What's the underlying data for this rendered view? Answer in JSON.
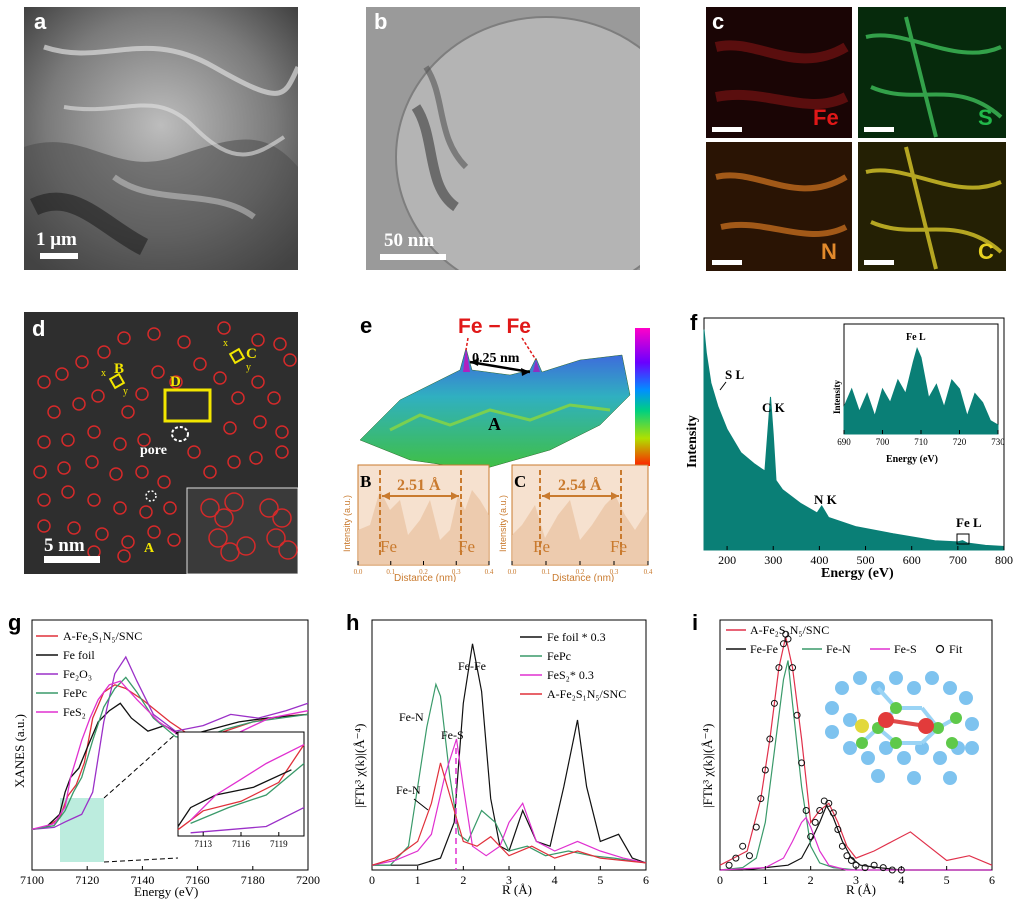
{
  "colors": {
    "teal": "#0a7f76",
    "red_circle": "#d42a2a",
    "yellow": "#f2e600",
    "orange": "#c97a2e",
    "orange_fill": "#f6e1cf",
    "fe_red": "#e01818",
    "s_green": "#22b84a",
    "n_orange": "#e28a2c",
    "c_yellow": "#e6d020"
  },
  "panels": {
    "a": {
      "label": "a",
      "scale": "1 μm"
    },
    "b": {
      "label": "b",
      "scale": "50 nm"
    },
    "c": {
      "label": "c",
      "elements": [
        "Fe",
        "S",
        "N",
        "C"
      ]
    },
    "d": {
      "label": "d",
      "scale": "5 nm",
      "markers": {
        "B": "B",
        "C": "C",
        "D": "D",
        "A": "A",
        "pore": "pore",
        "x": "x",
        "y": "y"
      }
    },
    "e": {
      "label": "e",
      "fefe": "Fe − Fe",
      "distance": "0.25 nm",
      "site": "A",
      "profiles": [
        {
          "label": "B",
          "value": "2.51 Å",
          "fe_left": "Fe",
          "fe_right": "Fe"
        },
        {
          "label": "C",
          "value": "2.54 Å",
          "fe_left": "Fe",
          "fe_right": "Fe"
        }
      ],
      "ylabel": "Intensity (a.u.)",
      "xlabel": "Distance (nm)",
      "xticks": [
        "0.0",
        "0.1",
        "0.2",
        "0.3",
        "0.4"
      ]
    },
    "f": {
      "label": "f",
      "xlabel": "Energy (eV)",
      "ylabel": "Intensity",
      "xticks": [
        "200",
        "300",
        "400",
        "500",
        "600",
        "700",
        "800"
      ],
      "peaks": {
        "s": "S L",
        "c": "C K",
        "n": "N K",
        "fe": "Fe L"
      },
      "inset": {
        "title": "Fe L",
        "xlabel": "Energy (eV)",
        "ylabel": "Intensity",
        "xticks": [
          "690",
          "700",
          "710",
          "720",
          "730"
        ]
      }
    },
    "g": {
      "label": "g",
      "xlabel": "Energy (eV)",
      "ylabel": "XANES (a.u.)",
      "xticks": [
        "7100",
        "7120",
        "7140",
        "7160",
        "7180",
        "7200"
      ],
      "inset_xticks": [
        "7113",
        "7116",
        "7119"
      ],
      "legend": [
        "A-Fe2S1N5/SNC",
        "Fe foil",
        "Fe2O3",
        "FePc",
        "FeS2"
      ]
    },
    "h": {
      "label": "h",
      "xlabel": "R (Å)",
      "ylabel": "|FTk³ χ(k)|(Å⁻⁴)",
      "xticks": [
        "0",
        "1",
        "2",
        "3",
        "4",
        "5",
        "6"
      ],
      "legend": [
        "Fe foil * 0.3",
        "FePc",
        "FeS2* 0.3",
        "A-Fe2S1N5/SNC"
      ],
      "annotations": [
        "Fe-Fe",
        "Fe-N",
        "Fe-S",
        "Fe-N"
      ]
    },
    "i": {
      "label": "i",
      "xlabel": "R (Å)",
      "ylabel": "|FTk³ χ(k)|(Å⁻⁴)",
      "xticks": [
        "0",
        "1",
        "2",
        "3",
        "4",
        "5",
        "6"
      ],
      "legend": [
        "A-Fe2S1N5/SNC",
        "Fe-Fe",
        "Fe-N",
        "Fe-S",
        "Fit"
      ]
    }
  },
  "chart_data": [
    {
      "type": "line",
      "id": "f-eels",
      "xlabel": "Energy (eV)",
      "ylabel": "Intensity",
      "xlim": [
        150,
        800
      ],
      "series": [
        {
          "x": [
            150,
            155,
            165,
            180,
            200,
            230,
            260,
            282,
            288,
            294,
            300,
            306,
            320,
            360,
            395,
            405,
            420,
            480,
            560,
            650,
            700,
            710,
            720,
            760,
            800
          ],
          "y": [
            0.95,
            0.85,
            0.72,
            0.62,
            0.52,
            0.42,
            0.37,
            0.34,
            0.5,
            0.66,
            0.5,
            0.3,
            0.26,
            0.2,
            0.16,
            0.19,
            0.14,
            0.1,
            0.07,
            0.04,
            0.035,
            0.04,
            0.03,
            0.02,
            0.015
          ]
        }
      ]
    },
    {
      "type": "line",
      "id": "f-inset",
      "title": "Fe L",
      "xlabel": "Energy (eV)",
      "ylabel": "Intensity",
      "xlim": [
        690,
        730
      ],
      "series": [
        {
          "x": [
            690,
            692,
            694,
            696,
            698,
            700,
            702,
            704,
            706,
            708,
            709,
            710,
            712,
            714,
            716,
            718,
            720,
            722,
            724,
            726,
            728,
            730
          ],
          "y": [
            0.3,
            0.5,
            0.25,
            0.45,
            0.2,
            0.5,
            0.35,
            0.6,
            0.45,
            0.8,
            0.95,
            0.85,
            0.4,
            0.55,
            0.3,
            0.6,
            0.5,
            0.2,
            0.45,
            0.35,
            0.15,
            0.1
          ]
        }
      ]
    },
    {
      "type": "line",
      "id": "g-xanes",
      "xlabel": "Energy (eV)",
      "ylabel": "XANES (a.u.)",
      "xlim": [
        7100,
        7200
      ],
      "series": [
        {
          "name": "A-Fe2S1N5/SNC",
          "color": "#e0303a",
          "x": [
            7100,
            7105,
            7110,
            7113,
            7116,
            7119,
            7122,
            7126,
            7130,
            7134,
            7140,
            7150,
            7160,
            7170,
            7180,
            7190,
            7200
          ],
          "y": [
            0.02,
            0.03,
            0.08,
            0.2,
            0.26,
            0.38,
            0.62,
            0.76,
            0.8,
            0.78,
            0.72,
            0.6,
            0.5,
            0.55,
            0.6,
            0.63,
            0.64
          ]
        },
        {
          "name": "Fe foil",
          "color": "#111111",
          "x": [
            7100,
            7105,
            7110,
            7112,
            7114,
            7117,
            7120,
            7124,
            7128,
            7132,
            7136,
            7142,
            7148,
            7155,
            7165,
            7175,
            7185,
            7200
          ],
          "y": [
            0.02,
            0.03,
            0.1,
            0.22,
            0.3,
            0.35,
            0.46,
            0.6,
            0.66,
            0.7,
            0.62,
            0.55,
            0.58,
            0.52,
            0.56,
            0.6,
            0.62,
            0.64
          ]
        },
        {
          "name": "Fe2O3",
          "color": "#9b30c8",
          "x": [
            7100,
            7108,
            7112,
            7115,
            7118,
            7122,
            7126,
            7130,
            7134,
            7138,
            7144,
            7152,
            7162,
            7172,
            7182,
            7192,
            7200
          ],
          "y": [
            0.02,
            0.03,
            0.06,
            0.08,
            0.1,
            0.22,
            0.6,
            0.86,
            0.95,
            0.82,
            0.64,
            0.55,
            0.58,
            0.64,
            0.62,
            0.66,
            0.7
          ]
        },
        {
          "name": "FePc",
          "color": "#3a9a6a",
          "x": [
            7100,
            7108,
            7112,
            7115,
            7118,
            7122,
            7126,
            7130,
            7134,
            7138,
            7144,
            7152,
            7160,
            7170,
            7180,
            7190,
            7200
          ],
          "y": [
            0.02,
            0.04,
            0.12,
            0.22,
            0.3,
            0.5,
            0.68,
            0.78,
            0.84,
            0.76,
            0.62,
            0.52,
            0.5,
            0.56,
            0.6,
            0.62,
            0.64
          ]
        },
        {
          "name": "FeS2",
          "color": "#e030d0",
          "x": [
            7100,
            7108,
            7112,
            7114,
            7116,
            7118,
            7121,
            7124,
            7128,
            7132,
            7138,
            7146,
            7156,
            7166,
            7176,
            7186,
            7200
          ],
          "y": [
            0.02,
            0.05,
            0.14,
            0.3,
            0.4,
            0.5,
            0.62,
            0.72,
            0.8,
            0.82,
            0.72,
            0.6,
            0.5,
            0.48,
            0.55,
            0.62,
            0.66
          ]
        }
      ]
    },
    {
      "type": "line",
      "id": "h-ft",
      "xlabel": "R (Å)",
      "ylabel": "|FTk³ χ(k)|(Å⁻⁴)",
      "xlim": [
        0,
        6
      ],
      "series": [
        {
          "name": "Fe foil * 0.3",
          "color": "#111111",
          "x": [
            0,
            0.5,
            1.0,
            1.5,
            1.8,
            2.0,
            2.2,
            2.4,
            2.6,
            2.8,
            3.0,
            3.3,
            3.6,
            3.9,
            4.2,
            4.5,
            4.7,
            5.0,
            5.4,
            5.7,
            6.0
          ],
          "y": [
            0.02,
            0.02,
            0.02,
            0.05,
            0.2,
            0.7,
            0.95,
            0.75,
            0.3,
            0.1,
            0.08,
            0.25,
            0.12,
            0.1,
            0.35,
            0.63,
            0.35,
            0.12,
            0.15,
            0.05,
            0.03
          ]
        },
        {
          "name": "FePc",
          "color": "#3a9a6a",
          "x": [
            0,
            0.4,
            0.8,
            1.0,
            1.2,
            1.4,
            1.5,
            1.7,
            1.9,
            2.1,
            2.4,
            2.7,
            3.0,
            3.4,
            3.8,
            4.3,
            4.8,
            5.3,
            6.0
          ],
          "y": [
            0.02,
            0.02,
            0.1,
            0.35,
            0.6,
            0.78,
            0.73,
            0.4,
            0.15,
            0.12,
            0.25,
            0.2,
            0.08,
            0.1,
            0.06,
            0.08,
            0.06,
            0.05,
            0.03
          ]
        },
        {
          "name": "FeS2* 0.3",
          "color": "#e030d0",
          "x": [
            0,
            0.5,
            1.0,
            1.3,
            1.6,
            1.85,
            2.0,
            2.2,
            2.5,
            2.8,
            3.0,
            3.3,
            3.6,
            4.0,
            4.5,
            5.0,
            5.5,
            6.0
          ],
          "y": [
            0.02,
            0.04,
            0.08,
            0.15,
            0.4,
            0.55,
            0.35,
            0.1,
            0.06,
            0.1,
            0.2,
            0.28,
            0.12,
            0.08,
            0.12,
            0.08,
            0.05,
            0.03
          ]
        },
        {
          "name": "A-Fe2S1N5/SNC",
          "color": "#e0303a",
          "x": [
            0,
            0.5,
            1.0,
            1.3,
            1.5,
            1.8,
            2.0,
            2.3,
            2.6,
            3.0,
            3.5,
            4.0,
            4.5,
            5.0,
            5.5,
            6.0
          ],
          "y": [
            0.02,
            0.05,
            0.12,
            0.28,
            0.45,
            0.25,
            0.12,
            0.1,
            0.14,
            0.06,
            0.1,
            0.05,
            0.08,
            0.05,
            0.04,
            0.03
          ]
        }
      ]
    },
    {
      "type": "line",
      "id": "i-fit",
      "xlabel": "R (Å)",
      "ylabel": "|FTk³ χ(k)|(Å⁻⁴)",
      "xlim": [
        0,
        6
      ],
      "series": [
        {
          "name": "A-Fe2S1N5/SNC",
          "color": "#e0304a",
          "x": [
            0,
            0.3,
            0.6,
            0.9,
            1.1,
            1.3,
            1.45,
            1.6,
            1.8,
            2.0,
            2.2,
            2.4,
            2.6,
            2.8,
            3.0,
            3.4,
            3.8,
            4.2,
            4.6,
            5.0,
            5.5,
            6.0
          ],
          "y": [
            0.02,
            0.05,
            0.08,
            0.3,
            0.55,
            0.85,
            0.98,
            0.85,
            0.55,
            0.2,
            0.25,
            0.28,
            0.2,
            0.1,
            0.05,
            0.08,
            0.12,
            0.16,
            0.1,
            0.04,
            0.06,
            0.02
          ]
        },
        {
          "name": "Fe-Fe",
          "color": "#111111",
          "x": [
            0,
            0.5,
            1.0,
            1.5,
            1.8,
            2.0,
            2.2,
            2.35,
            2.5,
            2.7,
            2.9,
            3.1,
            3.5,
            4.0,
            4.5,
            5.0,
            6.0
          ],
          "y": [
            0.0,
            0.0,
            0.01,
            0.02,
            0.05,
            0.12,
            0.2,
            0.27,
            0.22,
            0.12,
            0.05,
            0.02,
            0.01,
            0.0,
            0.0,
            0.0,
            0.0
          ]
        },
        {
          "name": "Fe-N",
          "color": "#3a9a6a",
          "x": [
            0,
            0.5,
            0.8,
            1.0,
            1.2,
            1.4,
            1.5,
            1.6,
            1.8,
            2.0,
            2.2,
            2.5,
            3.0,
            6.0
          ],
          "y": [
            0.0,
            0.01,
            0.05,
            0.2,
            0.5,
            0.8,
            0.88,
            0.7,
            0.35,
            0.1,
            0.03,
            0.01,
            0.0,
            0.0
          ]
        },
        {
          "name": "Fe-S",
          "color": "#e030d0",
          "x": [
            0,
            1.0,
            1.4,
            1.6,
            1.8,
            1.9,
            2.0,
            2.2,
            2.4,
            2.8,
            6.0
          ],
          "y": [
            0.0,
            0.01,
            0.05,
            0.12,
            0.2,
            0.22,
            0.18,
            0.08,
            0.02,
            0.0,
            0.0
          ]
        },
        {
          "name": "Fit",
          "color": "#111111",
          "marker": "circle",
          "x": [
            0.2,
            0.35,
            0.5,
            0.65,
            0.8,
            0.9,
            1.0,
            1.1,
            1.2,
            1.3,
            1.4,
            1.45,
            1.5,
            1.6,
            1.7,
            1.8,
            1.9,
            2.0,
            2.1,
            2.2,
            2.3,
            2.4,
            2.5,
            2.6,
            2.7,
            2.8,
            2.9,
            3.0,
            3.2,
            3.4,
            3.6,
            3.8,
            4.0
          ],
          "y": [
            0.02,
            0.05,
            0.1,
            0.06,
            0.18,
            0.3,
            0.42,
            0.55,
            0.7,
            0.85,
            0.95,
            0.99,
            0.97,
            0.85,
            0.65,
            0.45,
            0.25,
            0.14,
            0.2,
            0.25,
            0.29,
            0.28,
            0.24,
            0.17,
            0.1,
            0.06,
            0.04,
            0.02,
            0.01,
            0.02,
            0.01,
            0.0,
            0.0
          ]
        }
      ]
    }
  ]
}
